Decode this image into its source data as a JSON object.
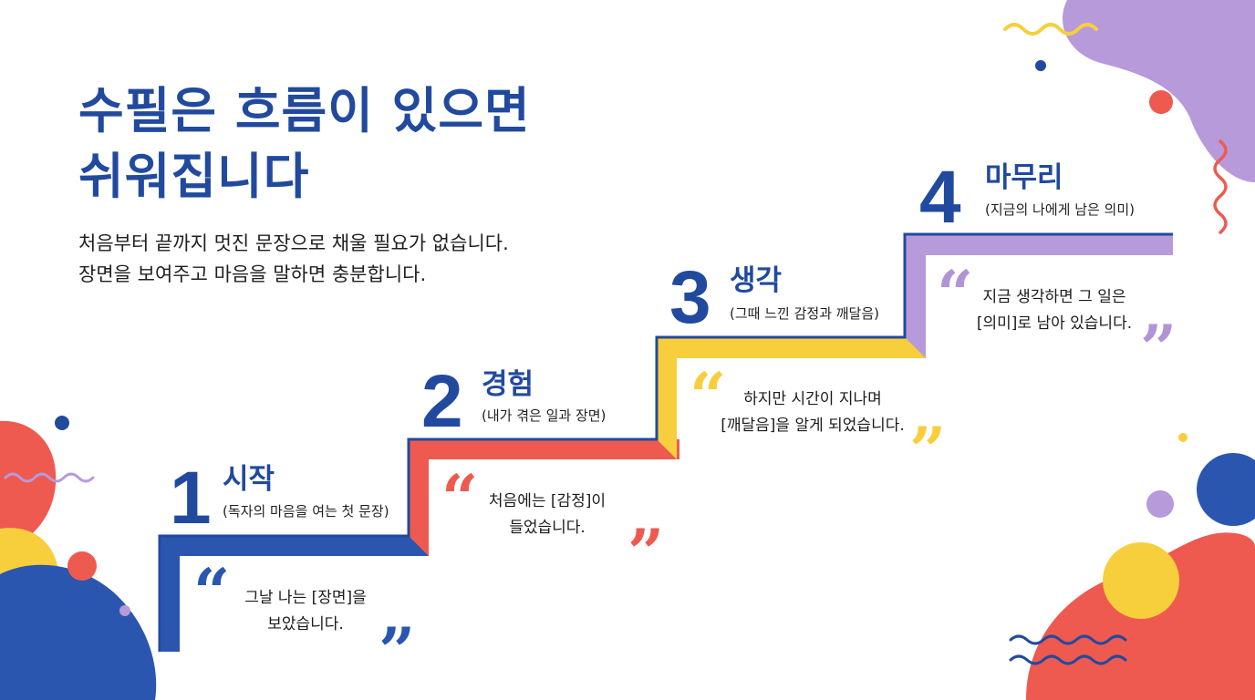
{
  "header": {
    "title": "수필은 흐름이 있으면\n쉬워집니다",
    "subtitle": "처음부터 끝까지 멋진 문장으로 채울 필요가 없습니다.\n장면을 보여주고 마음을 말하면 충분합니다."
  },
  "steps": [
    {
      "number": "1",
      "title": "시작",
      "subtitle": "(독자의 마음을 여는 첫 문장)",
      "quote": "그날 나는 [장면]을\n보았습니다.",
      "color": "#2a56b0"
    },
    {
      "number": "2",
      "title": "경험",
      "subtitle": "(내가 겪은 일과 장면)",
      "quote": "처음에는 [감정]이\n들었습니다.",
      "color": "#ee5a4f"
    },
    {
      "number": "3",
      "title": "생각",
      "subtitle": "(그때 느낀 감정과 깨달음)",
      "quote": "하지만 시간이 지나며\n[깨달음]을 알게 되었습니다.",
      "color": "#f7cf3c"
    },
    {
      "number": "4",
      "title": "마무리",
      "subtitle": "(지금의 나에게 남은 의미)",
      "quote": "지금 생각하면 그 일은\n[의미]로 남아 있습니다.",
      "color": "#b094d6"
    }
  ],
  "quote_marks": {
    "open": "“",
    "close": "”"
  },
  "colors": {
    "navy": "#214a9e",
    "blue": "#2a56b0",
    "red": "#ee5a4f",
    "yellow": "#f7cf3c",
    "purple": "#b094d6"
  }
}
